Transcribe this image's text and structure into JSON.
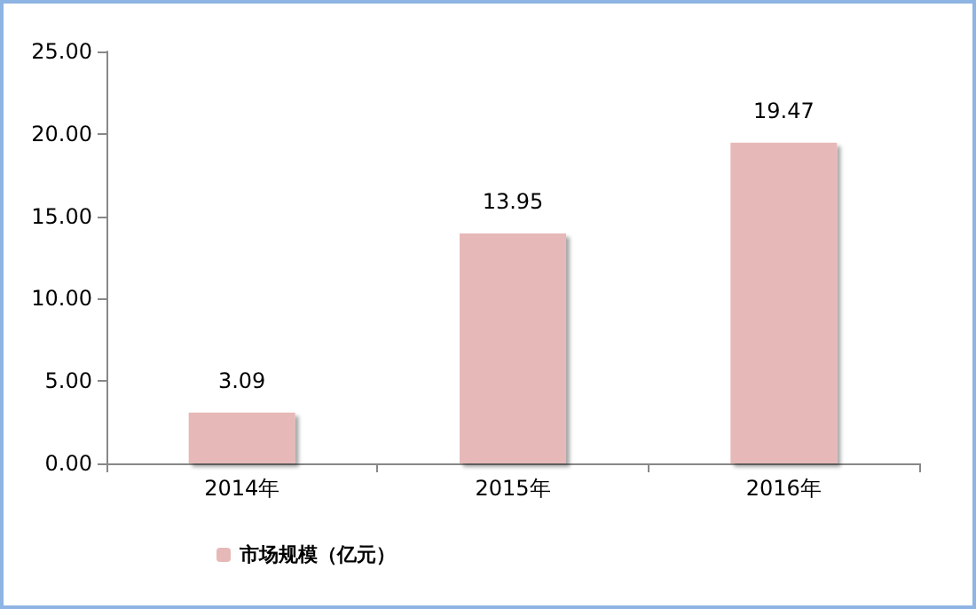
{
  "chart_data": {
    "type": "bar",
    "categories": [
      "2014年",
      "2015年",
      "2016年"
    ],
    "series": [
      {
        "name": "市场规模（亿元）",
        "color": "#e6b9b8",
        "values": [
          3.09,
          13.95,
          19.47
        ]
      }
    ],
    "ylim": [
      0,
      25
    ],
    "yticks": [
      {
        "value": 0,
        "label": "0.00"
      },
      {
        "value": 5,
        "label": "5.00"
      },
      {
        "value": 10,
        "label": "10.00"
      },
      {
        "value": 15,
        "label": "15.00"
      },
      {
        "value": 20,
        "label": "20.00"
      },
      {
        "value": 25,
        "label": "25.00"
      }
    ],
    "grid": false,
    "legend": "bottom left",
    "data_labels": true
  }
}
